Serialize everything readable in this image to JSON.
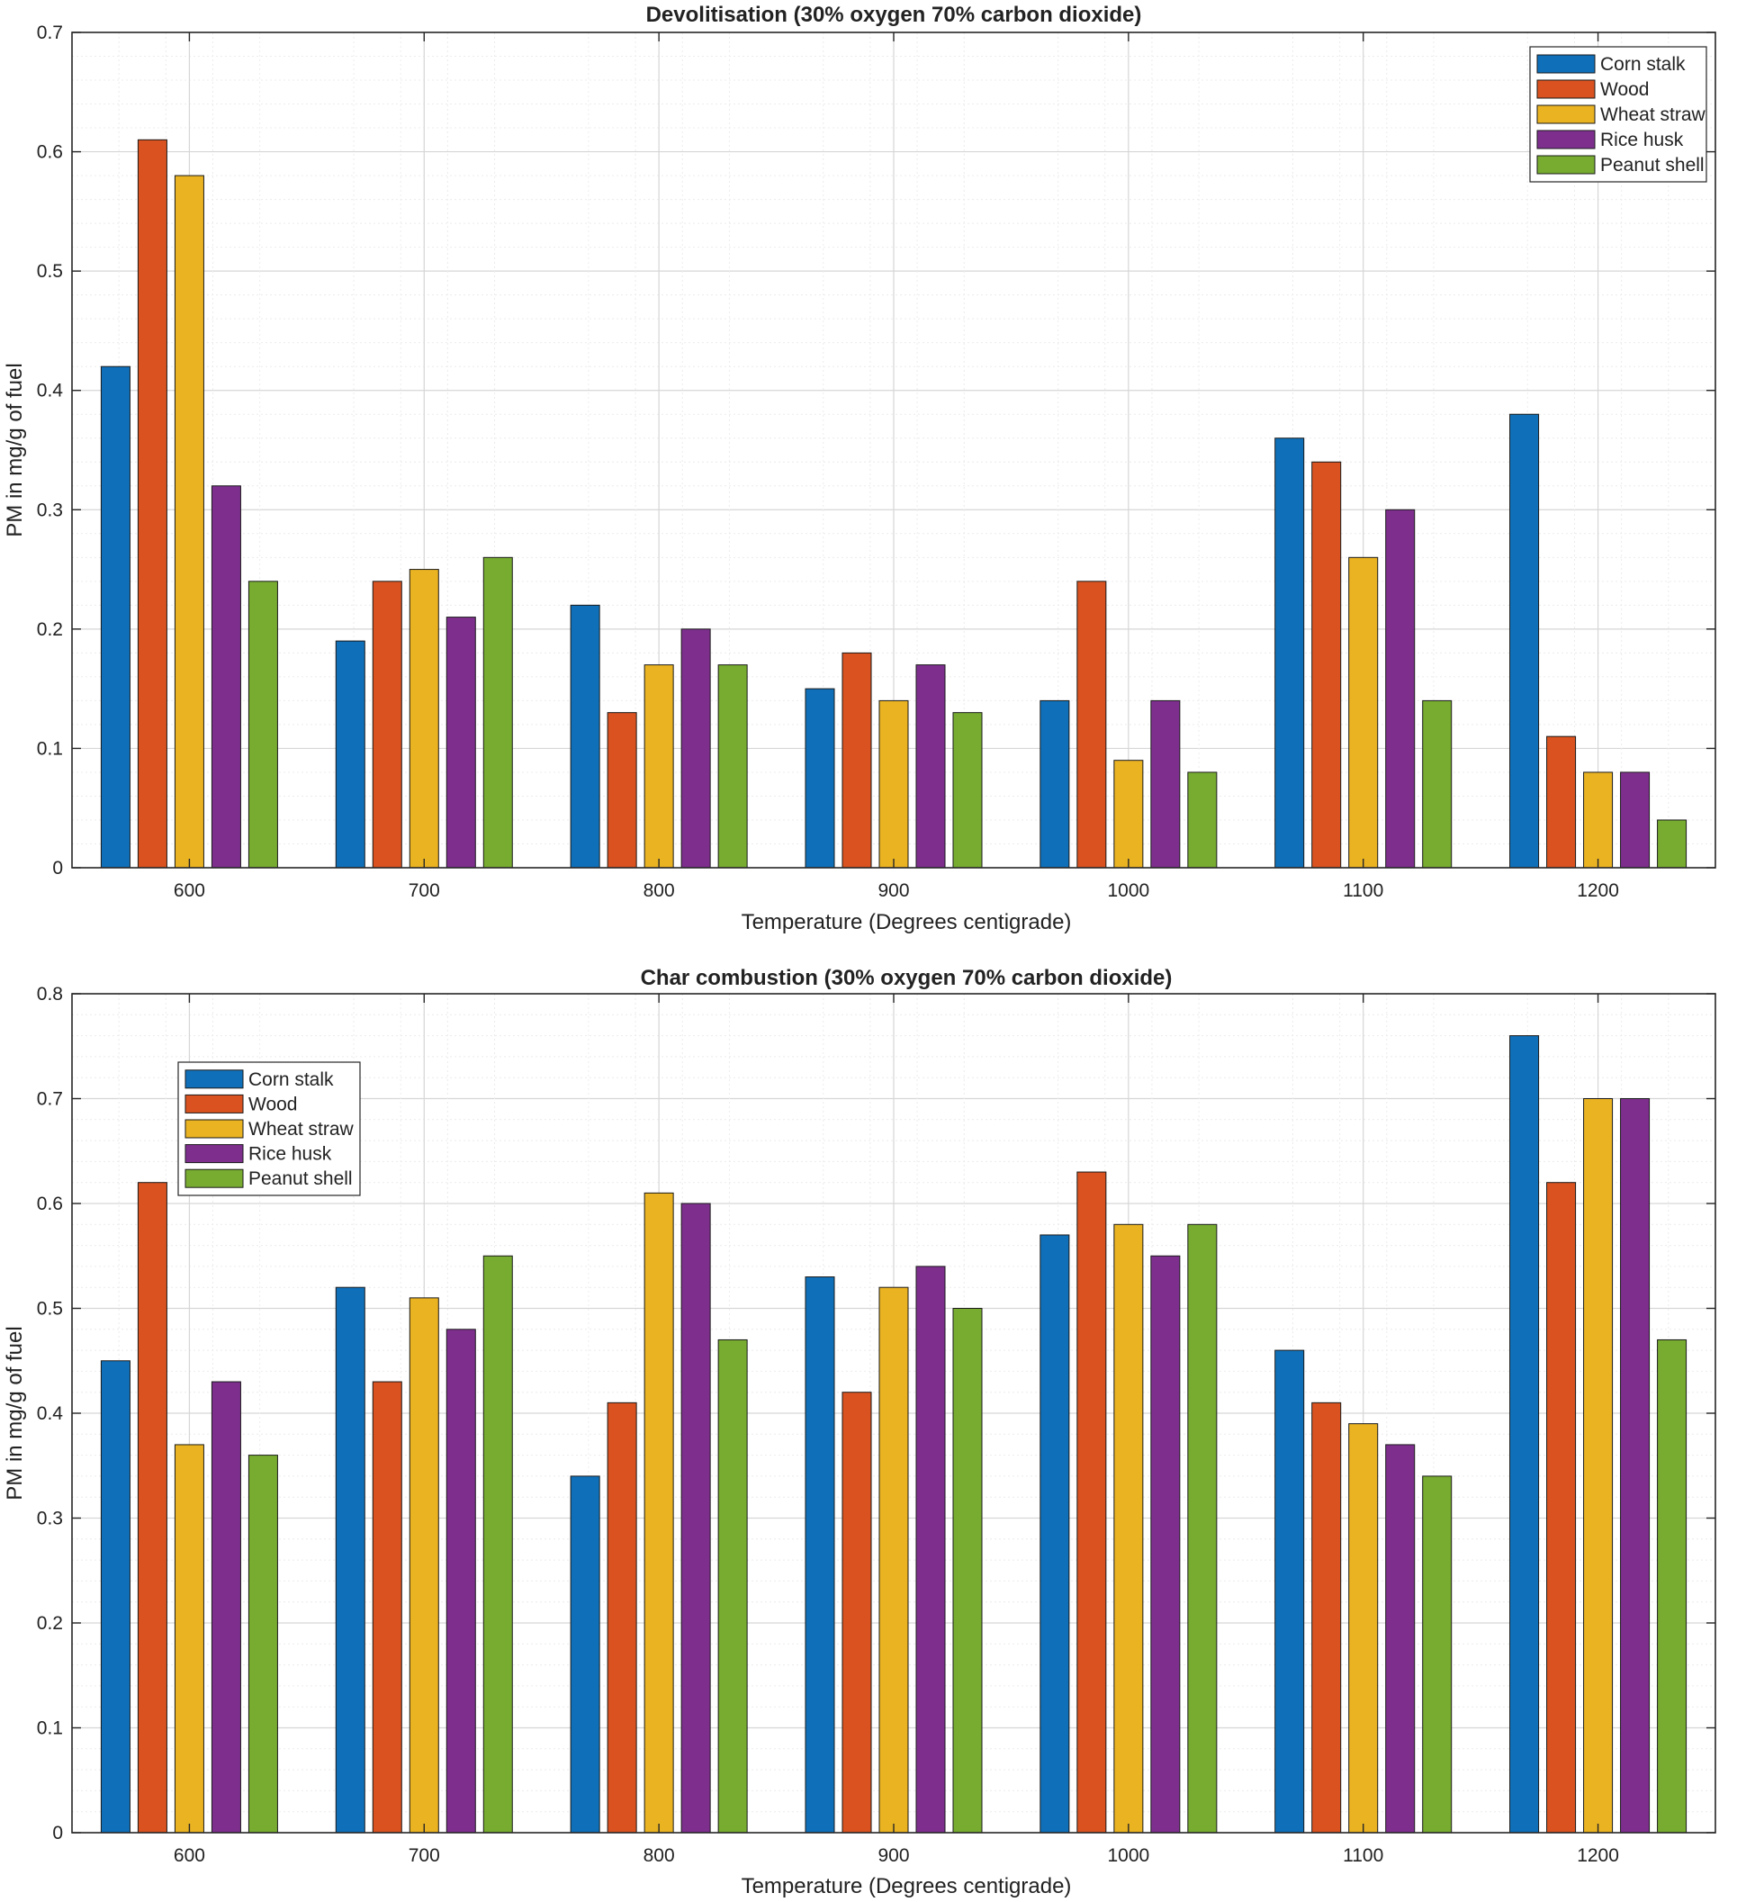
{
  "colors": {
    "corn_stalk": "#0f70b9",
    "wood": "#d9521f",
    "wheat_straw": "#eab322",
    "rice_husk": "#7e2f8e",
    "peanut_shell": "#77ac30",
    "grid_major": "#d6d6d6",
    "grid_minor": "#ececec",
    "axis": "#262626"
  },
  "chart_data": [
    {
      "type": "bar",
      "title": "Devolitisation (30% oxygen 70% carbon dioxide)",
      "xlabel": "Temperature (Degrees centigrade)",
      "ylabel": "PM in mg/g of fuel",
      "ylim": [
        0,
        0.7
      ],
      "yticks": [
        "0",
        "0.1",
        "0.2",
        "0.3",
        "0.4",
        "0.5",
        "0.6",
        "0.7"
      ],
      "categories": [
        "600",
        "700",
        "800",
        "900",
        "1000",
        "1100",
        "1200"
      ],
      "legend_position": "top-right",
      "grid": true,
      "series": [
        {
          "name": "Corn stalk",
          "color_key": "corn_stalk",
          "values": [
            0.42,
            0.19,
            0.22,
            0.15,
            0.14,
            0.36,
            0.38
          ]
        },
        {
          "name": "Wood",
          "color_key": "wood",
          "values": [
            0.61,
            0.24,
            0.13,
            0.18,
            0.24,
            0.34,
            0.11
          ]
        },
        {
          "name": "Wheat straw",
          "color_key": "wheat_straw",
          "values": [
            0.58,
            0.25,
            0.17,
            0.14,
            0.09,
            0.26,
            0.08
          ]
        },
        {
          "name": "Rice husk",
          "color_key": "rice_husk",
          "values": [
            0.32,
            0.21,
            0.2,
            0.17,
            0.14,
            0.3,
            0.08
          ]
        },
        {
          "name": "Peanut shell",
          "color_key": "peanut_shell",
          "values": [
            0.24,
            0.26,
            0.17,
            0.13,
            0.08,
            0.14,
            0.04
          ]
        }
      ]
    },
    {
      "type": "bar",
      "title": "Char combustion (30% oxygen 70% carbon dioxide)",
      "xlabel": "Temperature (Degrees centigrade)",
      "ylabel": "PM in mg/g of fuel",
      "ylim": [
        0,
        0.8
      ],
      "yticks": [
        "0",
        "0.1",
        "0.2",
        "0.3",
        "0.4",
        "0.5",
        "0.6",
        "0.7",
        "0.8"
      ],
      "categories": [
        "600",
        "700",
        "800",
        "900",
        "1000",
        "1100",
        "1200"
      ],
      "legend_position": "top-left",
      "grid": true,
      "series": [
        {
          "name": "Corn stalk",
          "color_key": "corn_stalk",
          "values": [
            0.45,
            0.52,
            0.34,
            0.53,
            0.57,
            0.46,
            0.76
          ]
        },
        {
          "name": "Wood",
          "color_key": "wood",
          "values": [
            0.62,
            0.43,
            0.41,
            0.42,
            0.63,
            0.41,
            0.62
          ]
        },
        {
          "name": "Wheat straw",
          "color_key": "wheat_straw",
          "values": [
            0.37,
            0.51,
            0.61,
            0.52,
            0.58,
            0.39,
            0.7
          ]
        },
        {
          "name": "Rice husk",
          "color_key": "rice_husk",
          "values": [
            0.43,
            0.48,
            0.6,
            0.54,
            0.55,
            0.37,
            0.7
          ]
        },
        {
          "name": "Peanut shell",
          "color_key": "peanut_shell",
          "values": [
            0.36,
            0.55,
            0.47,
            0.5,
            0.58,
            0.34,
            0.47
          ]
        }
      ]
    }
  ]
}
